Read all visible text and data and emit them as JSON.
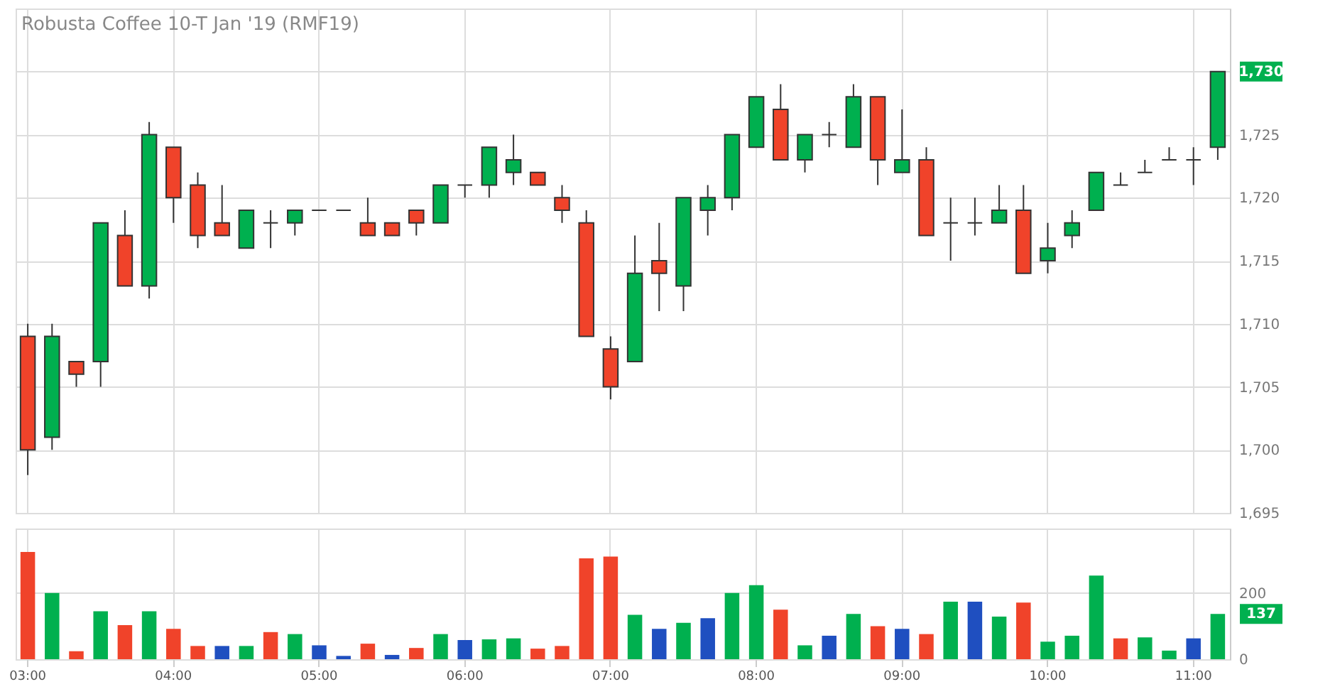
{
  "chart_data": [
    {
      "type": "candlestick",
      "title": "Robusta Coffee 10-T Jan '19 (RMF19)",
      "categories": [
        null,
        null,
        null,
        null,
        null,
        null,
        null,
        null,
        null,
        null,
        null,
        null,
        null,
        null,
        null,
        null,
        null,
        null,
        null,
        null,
        null,
        null,
        null,
        null,
        null,
        null,
        null,
        null,
        null,
        null,
        null,
        null,
        null,
        null,
        null,
        null,
        null,
        null,
        null,
        null,
        null,
        null,
        null,
        null,
        null,
        null,
        null,
        null,
        null,
        null
      ],
      "ohlc": [
        [
          1709,
          1710,
          1698,
          1700
        ],
        [
          1701,
          1710,
          1700,
          1709
        ],
        [
          1707,
          1707,
          1705,
          1706
        ],
        [
          1707,
          1718,
          1705,
          1718
        ],
        [
          1717,
          1719,
          1713,
          1713
        ],
        [
          1713,
          1726,
          1712,
          1725
        ],
        [
          1724,
          1724,
          1718,
          1720
        ],
        [
          1721,
          1722,
          1716,
          1717
        ],
        [
          1718,
          1721,
          1717,
          1717
        ],
        [
          1716,
          1719,
          1716,
          1719
        ],
        [
          1718,
          1719,
          1716,
          1718
        ],
        [
          1718,
          1719,
          1717,
          1719
        ],
        [
          1719,
          1719,
          1719,
          1719
        ],
        [
          1719,
          1719,
          1719,
          1719
        ],
        [
          1718,
          1720,
          1717,
          1717
        ],
        [
          1718,
          1718,
          1717,
          1717
        ],
        [
          1719,
          1719,
          1717,
          1718
        ],
        [
          1718,
          1721,
          1718,
          1721
        ],
        [
          1721,
          1721,
          1720,
          1721
        ],
        [
          1721,
          1724,
          1720,
          1724
        ],
        [
          1722,
          1725,
          1721,
          1723
        ],
        [
          1722,
          1722,
          1721,
          1721
        ],
        [
          1720,
          1721,
          1718,
          1719
        ],
        [
          1718,
          1719,
          1709,
          1709
        ],
        [
          1708,
          1709,
          1704,
          1705
        ],
        [
          1707,
          1717,
          1707,
          1714
        ],
        [
          1715,
          1718,
          1711,
          1714
        ],
        [
          1713,
          1720,
          1711,
          1720
        ],
        [
          1719,
          1721,
          1717,
          1720
        ],
        [
          1720,
          1725,
          1719,
          1725
        ],
        [
          1724,
          1728,
          1724,
          1728
        ],
        [
          1727,
          1729,
          1723,
          1723
        ],
        [
          1723,
          1725,
          1722,
          1725
        ],
        [
          1725,
          1726,
          1724,
          1725
        ],
        [
          1724,
          1729,
          1724,
          1728
        ],
        [
          1728,
          1728,
          1721,
          1723
        ],
        [
          1722,
          1727,
          1722,
          1723
        ],
        [
          1723,
          1724,
          1717,
          1717
        ],
        [
          1718,
          1720,
          1715,
          1718
        ],
        [
          1718,
          1720,
          1717,
          1718
        ],
        [
          1718,
          1721,
          1718,
          1719
        ],
        [
          1719,
          1721,
          1714,
          1714
        ],
        [
          1715,
          1718,
          1714,
          1716
        ],
        [
          1717,
          1719,
          1716,
          1718
        ],
        [
          1719,
          1722,
          1719,
          1722
        ],
        [
          1721,
          1722,
          1721,
          1721
        ],
        [
          1722,
          1723,
          1722,
          1722
        ],
        [
          1723,
          1724,
          1723,
          1723
        ],
        [
          1723,
          1724,
          1721,
          1723
        ],
        [
          1724,
          1730,
          1723,
          1730
        ]
      ],
      "colors": [
        "#f0432a",
        "#00b04f",
        "#f0432a",
        "#00b04f",
        "#f0432a",
        "#00b04f",
        "#f0432a",
        "#f0432a",
        "#f0432a",
        "#00b04f",
        "#333333",
        "#00b04f",
        "#333333",
        "#333333",
        "#f0432a",
        "#f0432a",
        "#f0432a",
        "#00b04f",
        "#333333",
        "#00b04f",
        "#00b04f",
        "#f0432a",
        "#f0432a",
        "#f0432a",
        "#f0432a",
        "#00b04f",
        "#f0432a",
        "#00b04f",
        "#00b04f",
        "#00b04f",
        "#00b04f",
        "#f0432a",
        "#00b04f",
        "#333333",
        "#00b04f",
        "#f0432a",
        "#00b04f",
        "#f0432a",
        "#333333",
        "#333333",
        "#00b04f",
        "#f0432a",
        "#00b04f",
        "#00b04f",
        "#00b04f",
        "#333333",
        "#333333",
        "#333333",
        "#333333",
        "#00b04f"
      ],
      "ylim": [
        1695,
        1735
      ],
      "yticks": [
        {
          "value": 1695,
          "label": "1,695"
        },
        {
          "value": 1700,
          "label": "1,700"
        },
        {
          "value": 1705,
          "label": "1,705"
        },
        {
          "value": 1710,
          "label": "1,710"
        },
        {
          "value": 1715,
          "label": "1,715"
        },
        {
          "value": 1720,
          "label": "1,720"
        },
        {
          "value": 1725,
          "label": "1,725"
        },
        {
          "value": 1730,
          "label": null
        }
      ],
      "grid": true,
      "tick_labels": "y",
      "annotations": [
        "1,730"
      ]
    },
    {
      "type": "bar",
      "categories": [
        "03:00",
        null,
        null,
        null,
        null,
        null,
        "04:00",
        null,
        null,
        null,
        null,
        null,
        "05:00",
        null,
        null,
        null,
        null,
        null,
        "06:00",
        null,
        null,
        null,
        null,
        null,
        "07:00",
        null,
        null,
        null,
        null,
        null,
        "08:00",
        null,
        null,
        null,
        null,
        null,
        "09:00",
        null,
        null,
        null,
        null,
        null,
        "10:00",
        null,
        null,
        null,
        null,
        null,
        "11:00",
        null
      ],
      "values": [
        324,
        200,
        24,
        145,
        103,
        145,
        92,
        40,
        40,
        40,
        82,
        76,
        42,
        10,
        47,
        13,
        34,
        76,
        58,
        60,
        63,
        32,
        40,
        305,
        310,
        134,
        92,
        110,
        124,
        200,
        224,
        150,
        42,
        71,
        137,
        100,
        92,
        76,
        174,
        174,
        129,
        171,
        53,
        71,
        253,
        63,
        66,
        26,
        63,
        137
      ],
      "colors": [
        "#f0432a",
        "#00b04f",
        "#f0432a",
        "#00b04f",
        "#f0432a",
        "#00b04f",
        "#f0432a",
        "#f0432a",
        "#1f4fc0",
        "#00b04f",
        "#f0432a",
        "#00b04f",
        "#1f4fc0",
        "#1f4fc0",
        "#f0432a",
        "#1f4fc0",
        "#f0432a",
        "#00b04f",
        "#1f4fc0",
        "#00b04f",
        "#00b04f",
        "#f0432a",
        "#f0432a",
        "#f0432a",
        "#f0432a",
        "#00b04f",
        "#1f4fc0",
        "#00b04f",
        "#1f4fc0",
        "#00b04f",
        "#00b04f",
        "#f0432a",
        "#00b04f",
        "#1f4fc0",
        "#00b04f",
        "#f0432a",
        "#1f4fc0",
        "#f0432a",
        "#00b04f",
        "#1f4fc0",
        "#00b04f",
        "#f0432a",
        "#00b04f",
        "#00b04f",
        "#00b04f",
        "#f0432a",
        "#00b04f",
        "#00b04f",
        "#1f4fc0",
        "#00b04f"
      ],
      "ylim": [
        0,
        395
      ],
      "yticks": [
        0,
        200
      ],
      "grid": true,
      "annotations": [
        "137"
      ]
    }
  ]
}
